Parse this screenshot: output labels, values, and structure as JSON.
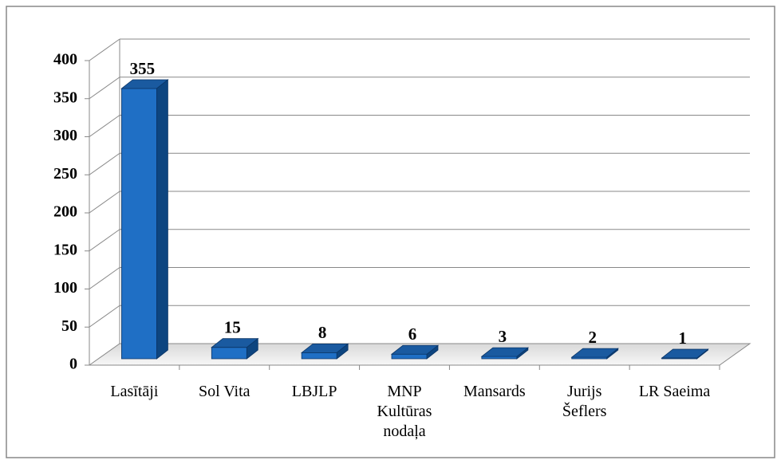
{
  "chart_data": {
    "type": "bar3d",
    "categories": [
      "Lasītāji",
      "Sol Vita",
      "LBJLP",
      "MNP Kultūras nodaļa",
      "Mansards",
      "Jurijs Šeflers",
      "LR Saeima"
    ],
    "values": [
      355,
      15,
      8,
      6,
      3,
      2,
      1
    ],
    "color": "#1f6fc5",
    "ylim": [
      0,
      400
    ],
    "yticks": [
      0,
      50,
      100,
      150,
      200,
      250,
      300,
      350,
      400
    ],
    "grid": true
  }
}
